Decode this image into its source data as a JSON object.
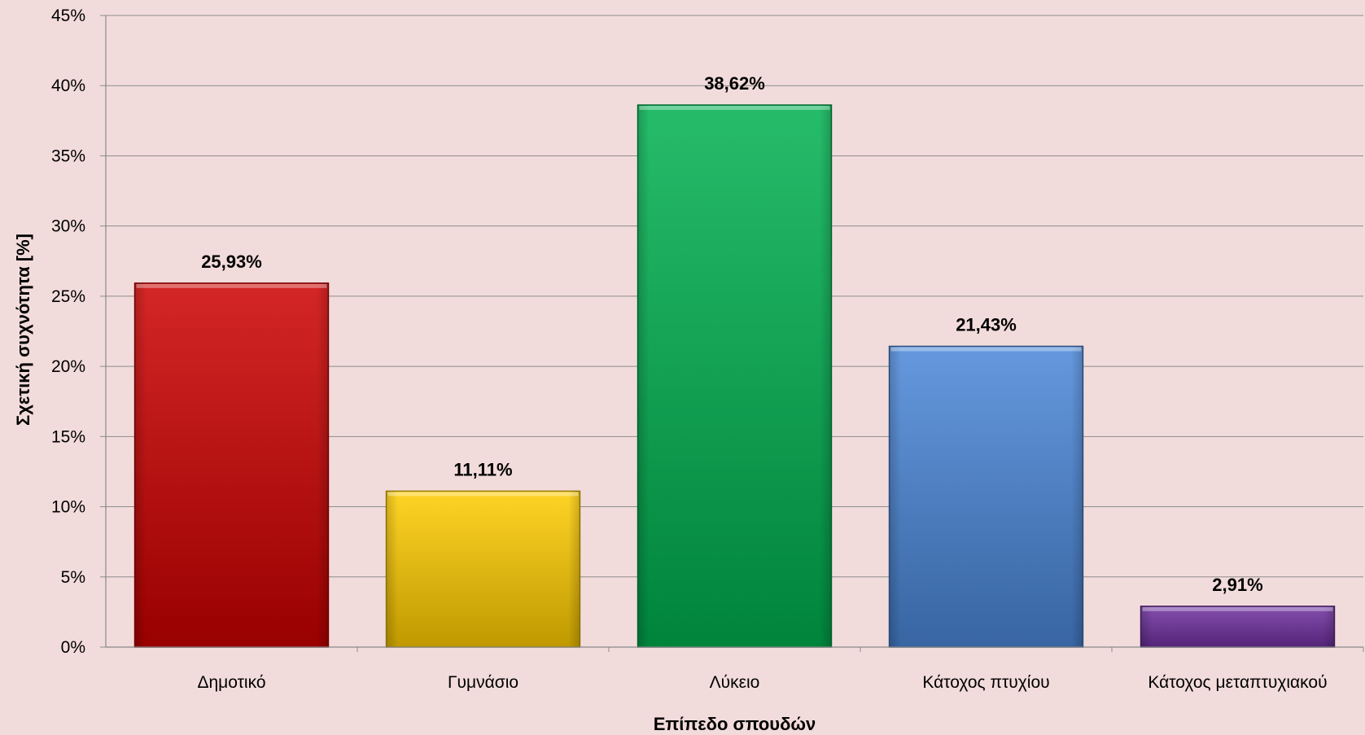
{
  "chart_data": {
    "type": "bar",
    "title": "",
    "xlabel": "Επίπεδο σπουδών",
    "ylabel": "Σχετική συχνότητα [%]",
    "ylim": [
      0,
      45
    ],
    "ytick_step": 5,
    "grid": true,
    "legend": "none",
    "categories": [
      "Δημοτικό",
      "Γυμνάσιο",
      "Λύκειο",
      "Κάτοχος πτυχίου",
      "Κάτοχος μεταπτυχιακού"
    ],
    "values": [
      25.93,
      11.11,
      38.62,
      21.43,
      2.91
    ],
    "data_labels": [
      "25,93%",
      "11,11%",
      "38,62%",
      "21,43%",
      "2,91%"
    ],
    "colors": [
      "#cc0000",
      "#ffcc00",
      "#00b050",
      "#4a86d8",
      "#7030a0"
    ]
  }
}
